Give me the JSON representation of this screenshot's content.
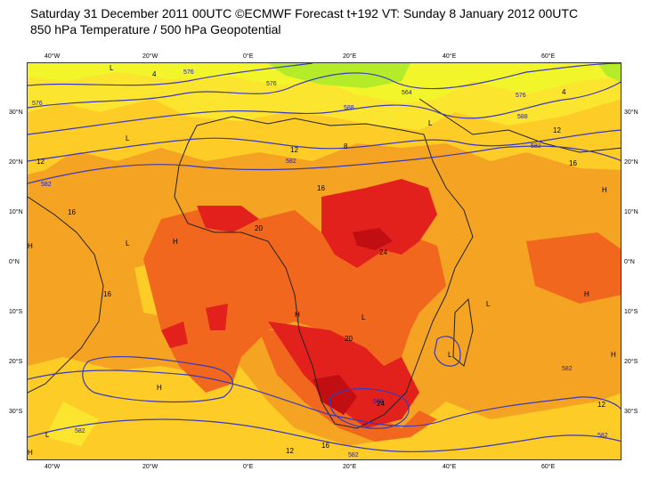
{
  "title_line1": "Saturday 31 December 2011 00UTC ©ECMWF Forecast t+192 VT: Sunday 8 January 2012 00UTC",
  "title_line2": "850 hPa Temperature / 500 hPa Geopotential",
  "longitude_labels": [
    "40°W",
    "20°W",
    "0°E",
    "20°E",
    "40°E",
    "60°E"
  ],
  "latitude_labels": [
    "30°N",
    "20°N",
    "10°N",
    "0°N",
    "10°S",
    "20°S",
    "30°S"
  ],
  "geopotential_labels": [
    "576",
    "576",
    "576",
    "582",
    "582",
    "582",
    "582",
    "582",
    "582",
    "582",
    "588",
    "588",
    "588",
    "564",
    "576"
  ],
  "temperature_labels": [
    "12",
    "12",
    "12",
    "12",
    "16",
    "16",
    "16",
    "16",
    "16",
    "20",
    "20",
    "24",
    "24",
    "8",
    "4",
    "4",
    "12"
  ],
  "pressure_markers": [
    "H",
    "H",
    "H",
    "H",
    "H",
    "H",
    "H",
    "H",
    "L",
    "L",
    "L",
    "L",
    "L",
    "L",
    "L",
    "L"
  ],
  "colors": {
    "temp_0_4": "#b5ec2a",
    "temp_4_8": "#f2f52a",
    "temp_8_12": "#fce52e",
    "temp_12_16": "#fdcc26",
    "temp_16_20": "#f5a323",
    "temp_20_24": "#f1671d",
    "temp_24_28": "#e3211c",
    "temp_28_plus": "#c10e13",
    "geopotential_contour": "#3a3ab8",
    "coastline": "#222222"
  }
}
